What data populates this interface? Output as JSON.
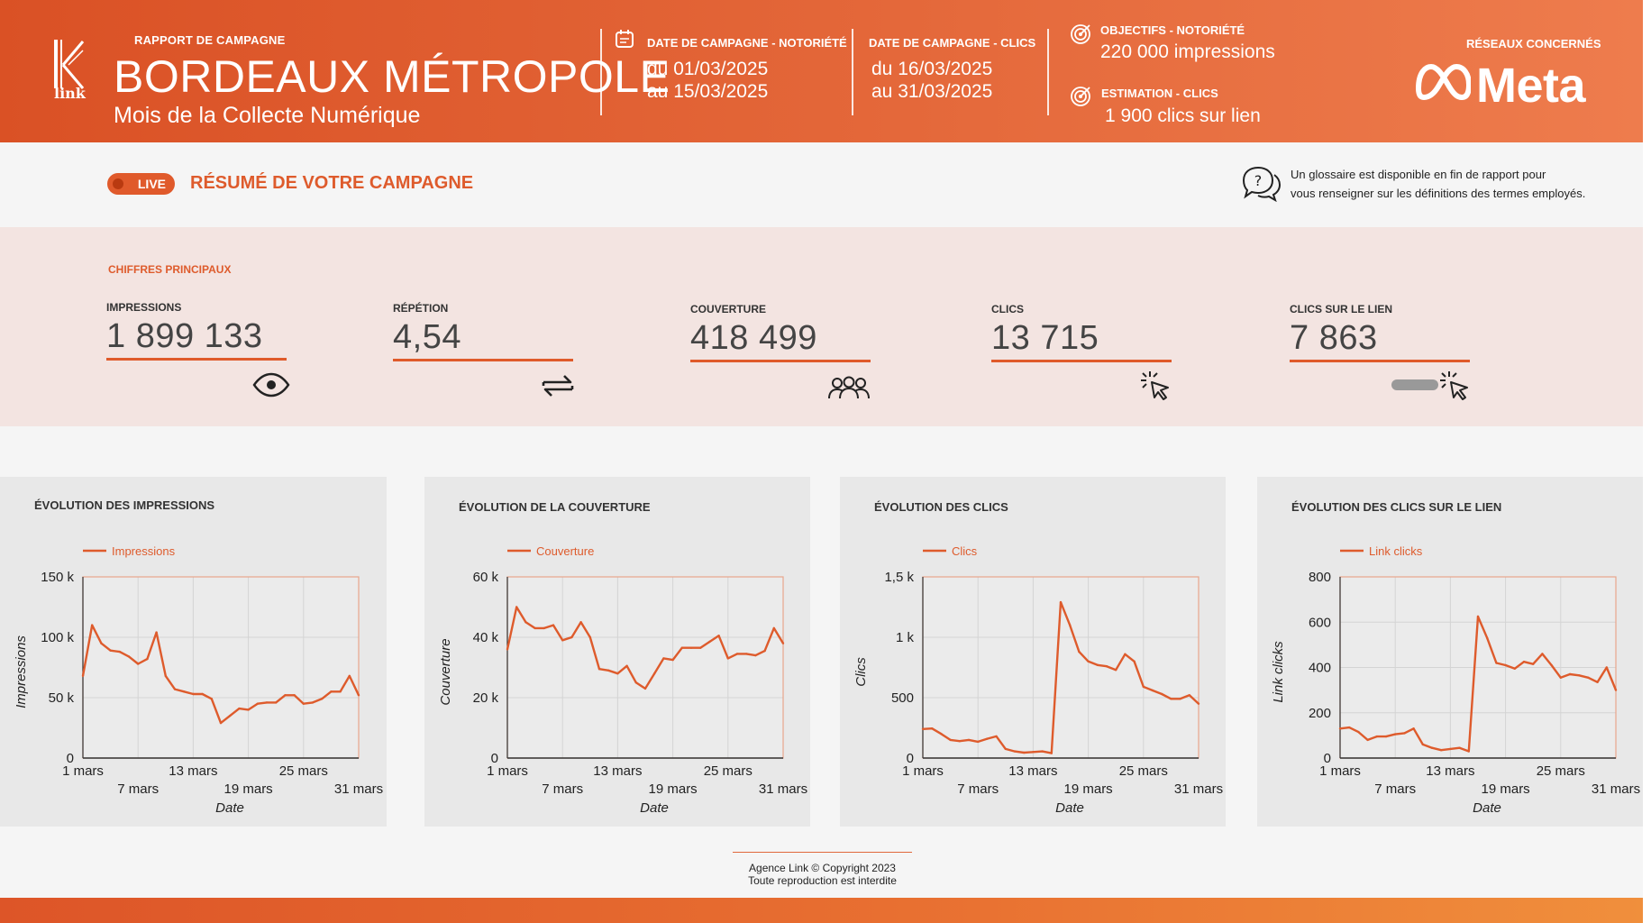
{
  "header": {
    "report_label": "RAPPORT DE CAMPAGNE",
    "logo_text": "link",
    "title": "BORDEAUX MÉTROPOLE",
    "subtitle": "Mois de la Collecte Numérique",
    "campaign_notoriety": {
      "label": "DATE DE CAMPAGNE - NOTORIÉTÉ",
      "line1": "du 01/03/2025",
      "line2": "au 15/03/2025"
    },
    "campaign_clicks": {
      "label": "DATE DE CAMPAGNE - CLICS",
      "line1": "du 16/03/2025",
      "line2": "au 31/03/2025"
    },
    "objective": {
      "label": "OBJECTIFS - NOTORIÉTÉ",
      "value": "220 000 impressions"
    },
    "estimate": {
      "label": "ESTIMATION - CLICS",
      "value": "1 900 clics sur lien"
    },
    "networks_label": "RÉSEAUX CONCERNÉS",
    "network_name": "Meta",
    "colors": {
      "accent": "#de5b2c",
      "header_start": "#da5125",
      "header_end": "#ee7c4d"
    }
  },
  "summary": {
    "live_label": "LIVE",
    "title": "RÉSUMÉ DE VOTRE CAMPAGNE",
    "glossary_line1": "Un glossaire est disponible en fin de rapport pour",
    "glossary_line2": "vous renseigner sur les définitions des termes employés."
  },
  "kpis": {
    "section_label": "CHIFFRES PRINCIPAUX",
    "items": [
      {
        "label": "IMPRESSIONS",
        "value": "1 899 133",
        "icon": "eye-icon"
      },
      {
        "label": "RÉPÉTION",
        "value": "4,54",
        "icon": "repeat-icon"
      },
      {
        "label": "COUVERTURE",
        "value": "418 499",
        "icon": "people-icon"
      },
      {
        "label": "CLICS",
        "value": "13 715",
        "icon": "cursor-click-icon"
      },
      {
        "label": "CLICS SUR LE LIEN",
        "value": "7 863",
        "icon": "link-click-icon"
      }
    ]
  },
  "chart_data": [
    {
      "type": "line",
      "title": "ÉVOLUTION DES IMPRESSIONS",
      "series": [
        {
          "name": "Impressions",
          "values": [
            68000,
            110000,
            95000,
            89000,
            88000,
            84000,
            78000,
            82000,
            104000,
            68000,
            57000,
            55000,
            53000,
            53000,
            49000,
            29000,
            35000,
            41000,
            40000,
            45000,
            46000,
            46000,
            52000,
            52000,
            45000,
            46000,
            49000,
            55000,
            55000,
            68000,
            52000
          ]
        }
      ],
      "x": [
        1,
        2,
        3,
        4,
        5,
        6,
        7,
        8,
        9,
        10,
        11,
        12,
        13,
        14,
        15,
        16,
        17,
        18,
        19,
        20,
        21,
        22,
        23,
        24,
        25,
        26,
        27,
        28,
        29,
        30,
        31
      ],
      "x_ticks": [
        {
          "day": 1,
          "label": "1 mars"
        },
        {
          "day": 7,
          "label": "7 mars"
        },
        {
          "day": 13,
          "label": "13 mars"
        },
        {
          "day": 19,
          "label": "19 mars"
        },
        {
          "day": 25,
          "label": "25 mars"
        },
        {
          "day": 31,
          "label": "31 mars"
        }
      ],
      "ylim": [
        0,
        150000
      ],
      "y_ticks": [
        {
          "v": 0,
          "label": "0"
        },
        {
          "v": 50000,
          "label": "50 k"
        },
        {
          "v": 100000,
          "label": "100 k"
        },
        {
          "v": 150000,
          "label": "150 k"
        }
      ],
      "xlabel": "Date",
      "ylabel": "Impressions",
      "grid": true,
      "legend": "top-left"
    },
    {
      "type": "line",
      "title": "ÉVOLUTION DE LA COUVERTURE",
      "series": [
        {
          "name": "Couverture",
          "values": [
            36000,
            50000,
            45000,
            43000,
            43000,
            44000,
            39000,
            40000,
            45000,
            40000,
            29500,
            29000,
            28000,
            30500,
            25000,
            23000,
            28000,
            33000,
            32500,
            36500,
            36500,
            36500,
            38500,
            40500,
            33000,
            34500,
            34500,
            34000,
            35500,
            43000,
            38000
          ]
        }
      ],
      "x": [
        1,
        2,
        3,
        4,
        5,
        6,
        7,
        8,
        9,
        10,
        11,
        12,
        13,
        14,
        15,
        16,
        17,
        18,
        19,
        20,
        21,
        22,
        23,
        24,
        25,
        26,
        27,
        28,
        29,
        30,
        31
      ],
      "x_ticks": [
        {
          "day": 1,
          "label": "1 mars"
        },
        {
          "day": 7,
          "label": "7 mars"
        },
        {
          "day": 13,
          "label": "13 mars"
        },
        {
          "day": 19,
          "label": "19 mars"
        },
        {
          "day": 25,
          "label": "25 mars"
        },
        {
          "day": 31,
          "label": "31 mars"
        }
      ],
      "ylim": [
        0,
        60000
      ],
      "y_ticks": [
        {
          "v": 0,
          "label": "0"
        },
        {
          "v": 20000,
          "label": "20 k"
        },
        {
          "v": 40000,
          "label": "40 k"
        },
        {
          "v": 60000,
          "label": "60 k"
        }
      ],
      "xlabel": "Date",
      "ylabel": "Couverture",
      "grid": true,
      "legend": "top-left"
    },
    {
      "type": "line",
      "title": "ÉVOLUTION DES CLICS",
      "series": [
        {
          "name": "Clics",
          "values": [
            240,
            245,
            200,
            150,
            140,
            150,
            135,
            160,
            180,
            75,
            55,
            45,
            50,
            55,
            40,
            1290,
            1100,
            880,
            800,
            770,
            760,
            730,
            860,
            800,
            590,
            560,
            530,
            490,
            490,
            520,
            450
          ]
        }
      ],
      "x": [
        1,
        2,
        3,
        4,
        5,
        6,
        7,
        8,
        9,
        10,
        11,
        12,
        13,
        14,
        15,
        16,
        17,
        18,
        19,
        20,
        21,
        22,
        23,
        24,
        25,
        26,
        27,
        28,
        29,
        30,
        31
      ],
      "x_ticks": [
        {
          "day": 1,
          "label": "1 mars"
        },
        {
          "day": 7,
          "label": "7 mars"
        },
        {
          "day": 13,
          "label": "13 mars"
        },
        {
          "day": 19,
          "label": "19 mars"
        },
        {
          "day": 25,
          "label": "25 mars"
        },
        {
          "day": 31,
          "label": "31 mars"
        }
      ],
      "ylim": [
        0,
        1500
      ],
      "y_ticks": [
        {
          "v": 0,
          "label": "0"
        },
        {
          "v": 500,
          "label": "500"
        },
        {
          "v": 1000,
          "label": "1 k"
        },
        {
          "v": 1500,
          "label": "1,5 k"
        }
      ],
      "xlabel": "Date",
      "ylabel": "Clics",
      "grid": true,
      "legend": "top-left"
    },
    {
      "type": "line",
      "title": "ÉVOLUTION DES CLICS SUR LE LIEN",
      "series": [
        {
          "name": "Link clicks",
          "values": [
            130,
            135,
            115,
            80,
            95,
            95,
            105,
            110,
            130,
            60,
            45,
            35,
            40,
            45,
            30,
            625,
            530,
            420,
            410,
            395,
            425,
            415,
            460,
            410,
            355,
            370,
            365,
            355,
            335,
            400,
            300
          ]
        }
      ],
      "x": [
        1,
        2,
        3,
        4,
        5,
        6,
        7,
        8,
        9,
        10,
        11,
        12,
        13,
        14,
        15,
        16,
        17,
        18,
        19,
        20,
        21,
        22,
        23,
        24,
        25,
        26,
        27,
        28,
        29,
        30,
        31
      ],
      "x_ticks": [
        {
          "day": 1,
          "label": "1 mars"
        },
        {
          "day": 7,
          "label": "7 mars"
        },
        {
          "day": 13,
          "label": "13 mars"
        },
        {
          "day": 19,
          "label": "19 mars"
        },
        {
          "day": 25,
          "label": "25 mars"
        },
        {
          "day": 31,
          "label": "31 mars"
        }
      ],
      "ylim": [
        0,
        800
      ],
      "y_ticks": [
        {
          "v": 0,
          "label": "0"
        },
        {
          "v": 200,
          "label": "200"
        },
        {
          "v": 400,
          "label": "400"
        },
        {
          "v": 600,
          "label": "600"
        },
        {
          "v": 800,
          "label": "800"
        }
      ],
      "xlabel": "Date",
      "ylabel": "Link clicks",
      "grid": true,
      "legend": "top-left"
    }
  ],
  "footer": {
    "line1": "Agence Link © Copyright 2023",
    "line2": "Toute reproduction est interdite"
  }
}
